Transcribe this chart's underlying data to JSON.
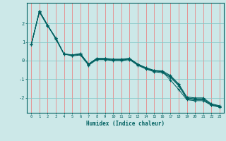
{
  "title": "",
  "xlabel": "Humidex (Indice chaleur)",
  "bg_color": "#cce8e8",
  "grid_color_v": "#e88888",
  "grid_color_h": "#88c8c8",
  "line_color": "#006060",
  "xlim": [
    -0.5,
    23.5
  ],
  "ylim": [
    -2.8,
    3.1
  ],
  "xticks": [
    0,
    1,
    2,
    3,
    4,
    5,
    6,
    7,
    8,
    9,
    10,
    11,
    12,
    13,
    14,
    15,
    16,
    17,
    18,
    19,
    20,
    21,
    22,
    23
  ],
  "yticks": [
    -2,
    -1,
    0,
    1,
    2
  ],
  "lines": [
    [
      0.85,
      2.65,
      1.9,
      1.2,
      0.35,
      0.3,
      0.38,
      -0.18,
      0.12,
      0.12,
      0.08,
      0.08,
      0.12,
      -0.18,
      -0.38,
      -0.52,
      -0.55,
      -0.8,
      -1.25,
      -1.95,
      -2.0,
      -2.0,
      -2.32,
      -2.42
    ],
    [
      0.85,
      2.65,
      1.9,
      1.15,
      0.35,
      0.25,
      0.3,
      -0.25,
      0.05,
      0.05,
      0.0,
      0.0,
      0.05,
      -0.25,
      -0.45,
      -0.6,
      -0.65,
      -0.9,
      -1.35,
      -2.05,
      -2.1,
      -2.1,
      -2.38,
      -2.48
    ],
    [
      0.85,
      2.6,
      1.85,
      1.22,
      0.36,
      0.28,
      0.34,
      -0.22,
      0.08,
      0.08,
      0.03,
      0.03,
      0.08,
      -0.22,
      -0.42,
      -0.56,
      -0.6,
      -0.85,
      -1.3,
      -2.0,
      -2.05,
      -2.05,
      -2.35,
      -2.45
    ],
    [
      0.85,
      2.65,
      1.9,
      1.2,
      0.36,
      0.31,
      0.36,
      -0.19,
      0.11,
      0.11,
      0.06,
      0.06,
      0.11,
      -0.19,
      -0.39,
      -0.54,
      -0.58,
      -1.05,
      -1.55,
      -2.1,
      -2.15,
      -2.15,
      -2.4,
      -2.5
    ]
  ]
}
